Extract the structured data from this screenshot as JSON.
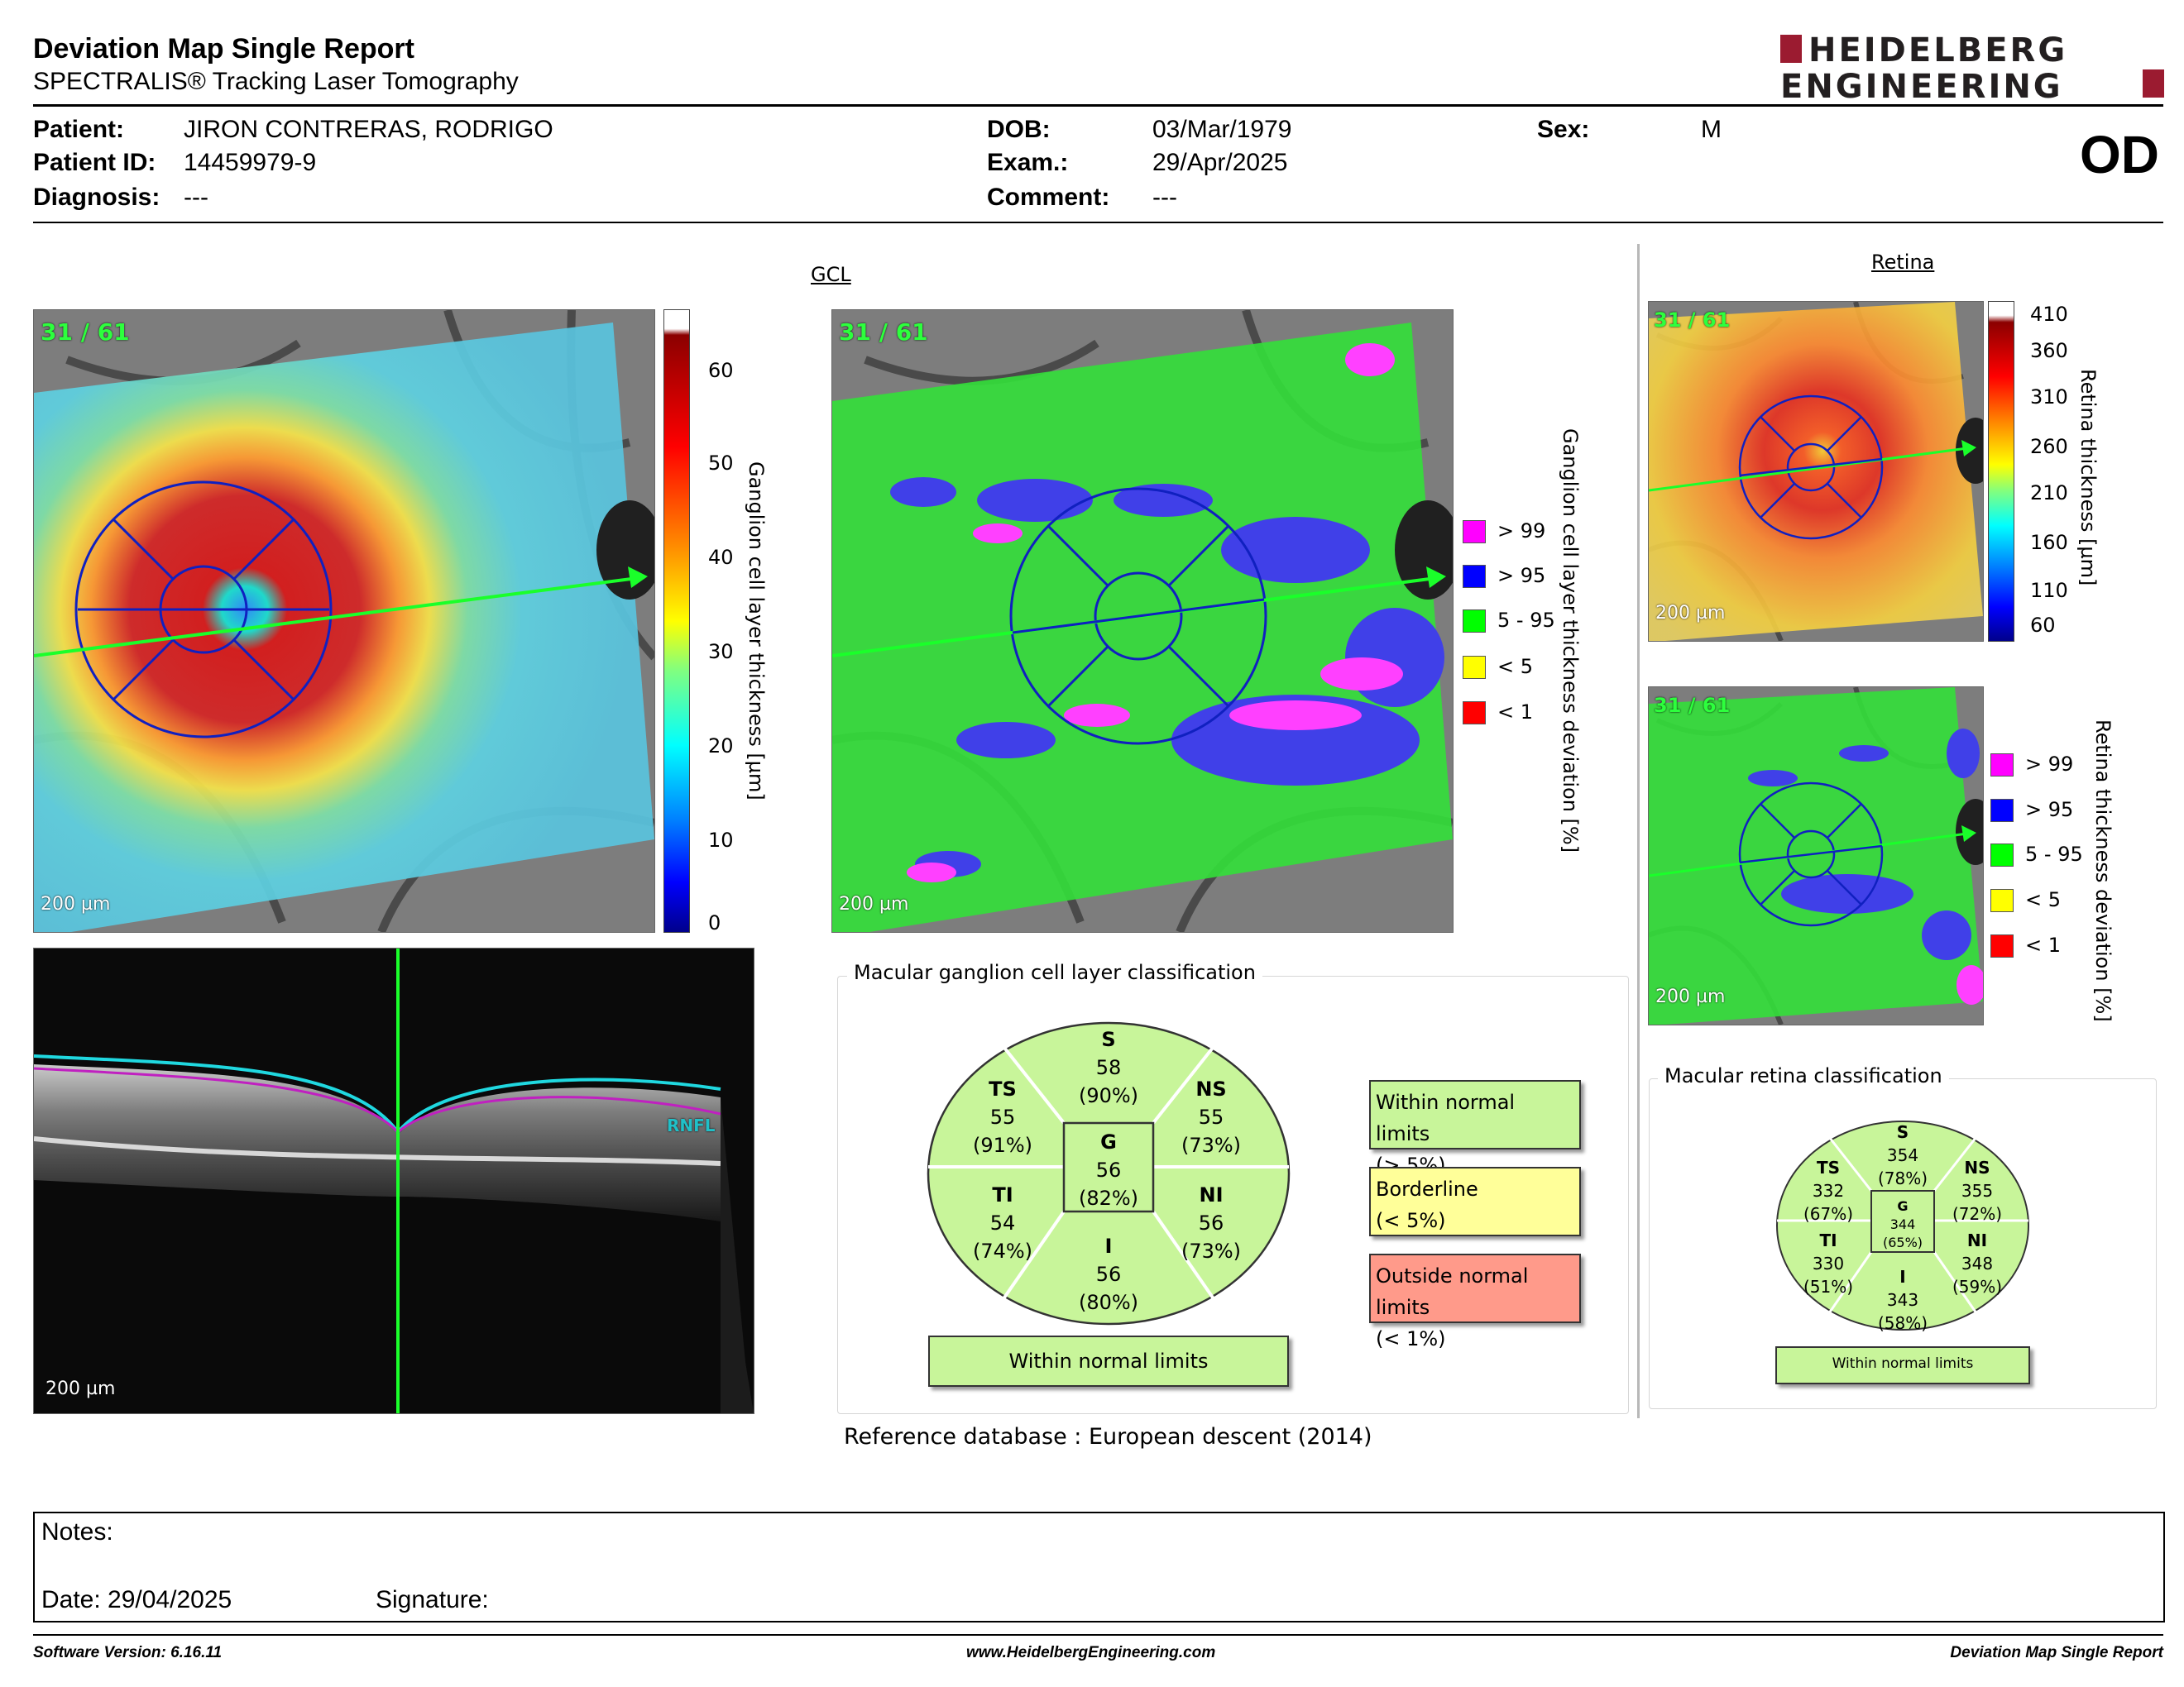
{
  "header": {
    "title": "Deviation Map Single Report",
    "subtitle": "SPECTRALIS® Tracking Laser Tomography",
    "logo_line1": "HEIDELBERG",
    "logo_line2": "ENGINEERING",
    "eye": "OD"
  },
  "patient": {
    "patient_label": "Patient:",
    "patient_value": "JIRON CONTRERAS, RODRIGO",
    "id_label": "Patient ID:",
    "id_value": "14459979-9",
    "diagnosis_label": "Diagnosis:",
    "diagnosis_value": "---",
    "dob_label": "DOB:",
    "dob_value": "03/Mar/1979",
    "exam_label": "Exam.:",
    "exam_value": "29/Apr/2025",
    "comment_label": "Comment:",
    "comment_value": "---",
    "sex_label": "Sex:",
    "sex_value": "M"
  },
  "gcl": {
    "section_title": "GCL",
    "scan_tag": "31 / 61",
    "scale_tag": "200 µm",
    "thickness_ticks": [
      "60",
      "50",
      "40",
      "30",
      "20",
      "10",
      "0"
    ],
    "thickness_label": "Ganglion cell layer thickness [µm]",
    "deviation_label": "Ganglion cell layer thickness deviation [%]",
    "legend": [
      {
        "label": "> 99",
        "color": "#ff00ff"
      },
      {
        "label": "> 95",
        "color": "#0000ff"
      },
      {
        "label": "5 - 95",
        "color": "#00ff00"
      },
      {
        "label": "< 5",
        "color": "#ffff00"
      },
      {
        "label": "< 1",
        "color": "#ff0000"
      }
    ]
  },
  "oct": {
    "scale_tag": "200 µm",
    "layer_tag": "RNFL"
  },
  "gcl_classification": {
    "title": "Macular ganglion cell layer classification",
    "sectors": {
      "S": {
        "label": "S",
        "value": "58",
        "pct": "(90%)"
      },
      "TS": {
        "label": "TS",
        "value": "55",
        "pct": "(91%)"
      },
      "NS": {
        "label": "NS",
        "value": "55",
        "pct": "(73%)"
      },
      "G": {
        "label": "G",
        "value": "56",
        "pct": "(82%)"
      },
      "TI": {
        "label": "TI",
        "value": "54",
        "pct": "(74%)"
      },
      "NI": {
        "label": "NI",
        "value": "56",
        "pct": "(73%)"
      },
      "I": {
        "label": "I",
        "value": "56",
        "pct": "(80%)"
      }
    },
    "result": "Within normal limits",
    "key": [
      {
        "line1": "Within normal limits",
        "line2": "(> 5%)",
        "color": "#c8f59a"
      },
      {
        "line1": "Borderline",
        "line2": "(< 5%)",
        "color": "#ffff99"
      },
      {
        "line1": "Outside normal limits",
        "line2": "(< 1%)",
        "color": "#ff9a8a"
      }
    ],
    "reference_label": "Reference database :",
    "reference_value": "European descent (2014)"
  },
  "retina": {
    "section_title": "Retina",
    "scan_tag": "31 / 61",
    "scale_tag": "200 µm",
    "thickness_ticks": [
      "410",
      "360",
      "310",
      "260",
      "210",
      "160",
      "110",
      "60"
    ],
    "thickness_label": "Retina thickness [µm]",
    "deviation_label": "Retina thickness deviation [%]",
    "legend": [
      {
        "label": "> 99",
        "color": "#ff00ff"
      },
      {
        "label": "> 95",
        "color": "#0000ff"
      },
      {
        "label": "5 - 95",
        "color": "#00ff00"
      },
      {
        "label": "< 5",
        "color": "#ffff00"
      },
      {
        "label": "< 1",
        "color": "#ff0000"
      }
    ]
  },
  "retina_classification": {
    "title": "Macular retina classification",
    "sectors": {
      "S": {
        "label": "S",
        "value": "354",
        "pct": "(78%)"
      },
      "TS": {
        "label": "TS",
        "value": "332",
        "pct": "(67%)"
      },
      "NS": {
        "label": "NS",
        "value": "355",
        "pct": "(72%)"
      },
      "G": {
        "label": "G",
        "value": "344",
        "pct": "(65%)"
      },
      "TI": {
        "label": "TI",
        "value": "330",
        "pct": "(51%)"
      },
      "NI": {
        "label": "NI",
        "value": "348",
        "pct": "(59%)"
      },
      "I": {
        "label": "I",
        "value": "343",
        "pct": "(58%)"
      }
    },
    "result": "Within normal limits"
  },
  "notes": {
    "notes_label": "Notes:",
    "date_label": "Date: 29/04/2025",
    "signature_label": "Signature:"
  },
  "footer": {
    "software": "Software Version: 6.16.11",
    "website": "www.HeidelbergEngineering.com",
    "report": "Deviation Map Single Report"
  }
}
